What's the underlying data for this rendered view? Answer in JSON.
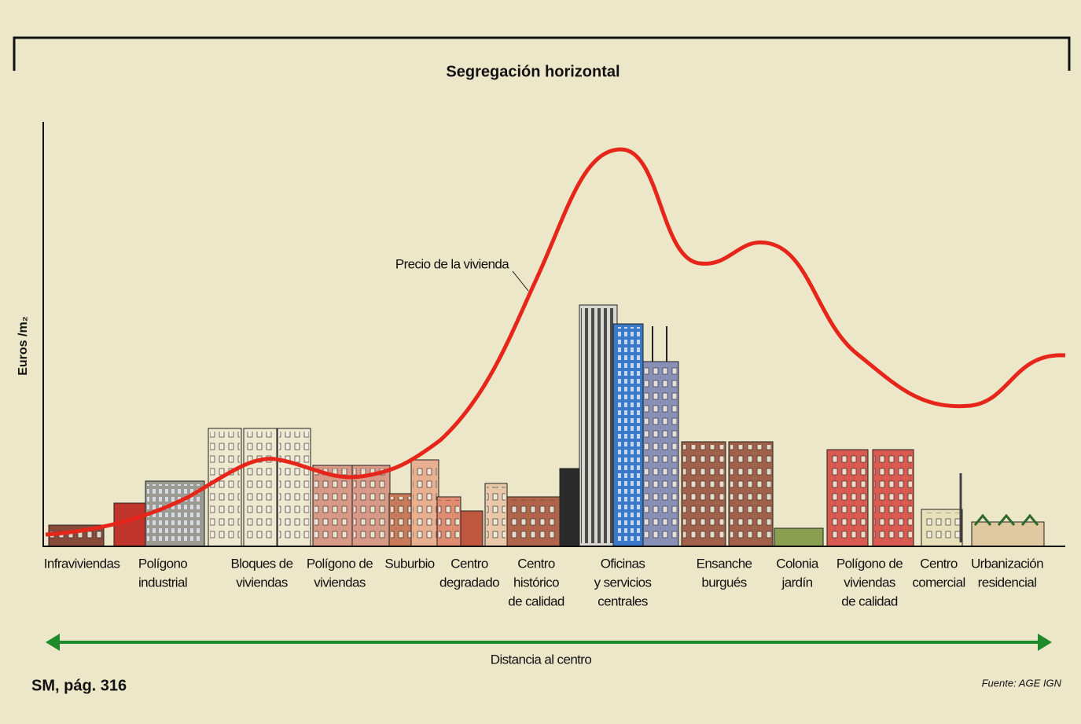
{
  "header": {
    "title": "Segregación horizontal"
  },
  "y_axis_label": "Euros /m₂",
  "curve_label": "Precio de la vivienda",
  "zones": [
    [
      "Infraviviendas"
    ],
    [
      "Polígono",
      "industrial"
    ],
    [
      "Bloques de",
      "viviendas"
    ],
    [
      "Polígono de",
      "viviendas"
    ],
    [
      "Suburbio"
    ],
    [
      "Centro",
      "degradado"
    ],
    [
      "Centro",
      "histórico",
      "de calidad"
    ],
    [
      "Oficinas",
      "y servicios",
      "centrales"
    ],
    [
      "Ensanche",
      "burgués"
    ],
    [
      "Colonia",
      "jardín"
    ],
    [
      "Polígono de",
      "viviendas",
      "de calidad"
    ],
    [
      "Centro",
      "comercial"
    ],
    [
      "Urbanización",
      "residencial"
    ]
  ],
  "x_axis_label": "Distancia al centro",
  "footer": {
    "reference": "SM, pág. 316",
    "source": "Fuente: AGE IGN"
  }
}
